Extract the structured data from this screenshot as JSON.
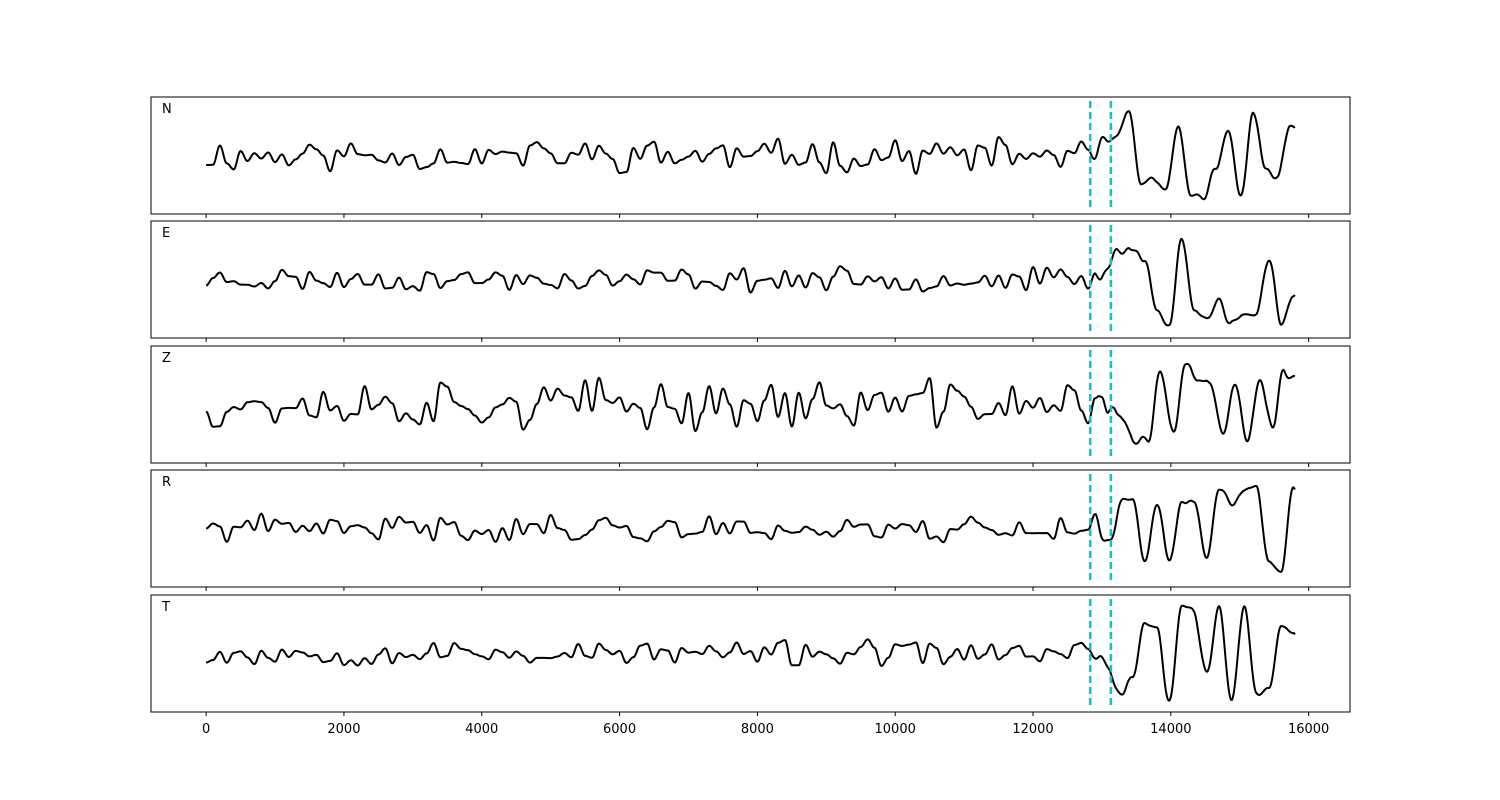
{
  "chart_data": {
    "type": "line",
    "title": "",
    "xlabel": "",
    "ylabel": "",
    "xlim": [
      -800,
      16600
    ],
    "x_ticks": [
      0,
      2000,
      4000,
      6000,
      8000,
      10000,
      12000,
      14000,
      16000
    ],
    "x_tick_labels": [
      "0",
      "2000",
      "4000",
      "6000",
      "8000",
      "10000",
      "12000",
      "14000",
      "16000"
    ],
    "sample_range": [
      0,
      15800
    ],
    "grid": false,
    "legend": "none",
    "vertical_markers": [
      {
        "x": 12830,
        "color": "#17becf",
        "style": "dashed"
      },
      {
        "x": 13130,
        "color": "#17becf",
        "style": "dashed"
      }
    ],
    "line_color": "#000000",
    "panels": [
      {
        "label": "N",
        "ylim": [
          -1.0,
          1.0
        ],
        "seed": 11,
        "noise_amp": 0.22,
        "event_amp": 0.75,
        "event_start": 12850
      },
      {
        "label": "E",
        "ylim": [
          -1.0,
          1.0
        ],
        "seed": 23,
        "noise_amp": 0.16,
        "event_amp": 0.8,
        "event_start": 12900
      },
      {
        "label": "Z",
        "ylim": [
          -1.0,
          1.0
        ],
        "seed": 37,
        "noise_amp": 0.33,
        "event_amp": 0.75,
        "event_start": 12950
      },
      {
        "label": "R",
        "ylim": [
          -1.0,
          1.0
        ],
        "seed": 41,
        "noise_amp": 0.18,
        "event_amp": 0.8,
        "event_start": 12900
      },
      {
        "label": "T",
        "ylim": [
          -1.0,
          1.0
        ],
        "seed": 53,
        "noise_amp": 0.17,
        "event_amp": 0.85,
        "event_start": 12900
      }
    ]
  }
}
